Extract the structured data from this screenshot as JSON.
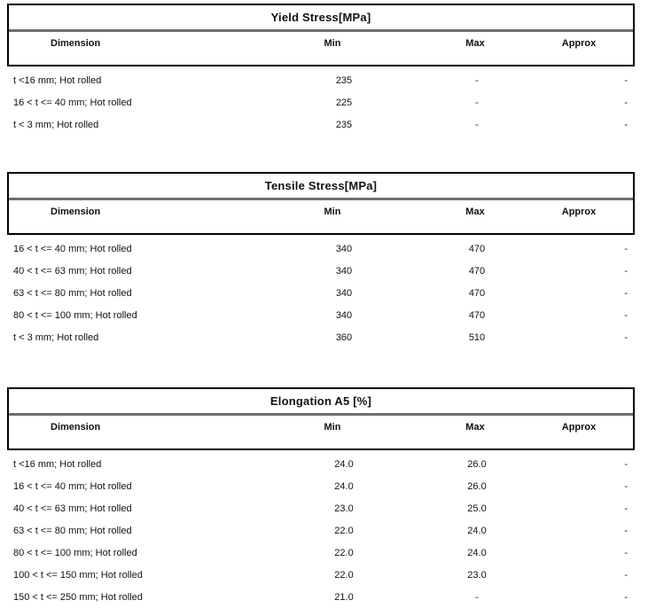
{
  "document": {
    "background_color": "#ffffff",
    "text_color": "#111111",
    "table_border_color": "#000000",
    "title_separator_color": "#6e6e6e"
  },
  "columns": [
    "Dimension",
    "Min",
    "Max",
    "Approx"
  ],
  "tables": [
    {
      "title": "Yield Stress[MPa]",
      "rows": [
        [
          "t <16 mm; Hot rolled",
          "235",
          "-",
          "-"
        ],
        [
          "16 < t <= 40 mm; Hot rolled",
          "225",
          "-",
          "-"
        ],
        [
          "t < 3 mm; Hot rolled",
          "235",
          "-",
          "-"
        ]
      ]
    },
    {
      "title": "Tensile Stress[MPa]",
      "rows": [
        [
          "16 < t <= 40 mm; Hot rolled",
          "340",
          "470",
          "-"
        ],
        [
          "40 < t <= 63 mm; Hot rolled",
          "340",
          "470",
          "-"
        ],
        [
          "63 < t <= 80 mm; Hot rolled",
          "340",
          "470",
          "-"
        ],
        [
          "80 < t <= 100 mm; Hot rolled",
          "340",
          "470",
          "-"
        ],
        [
          "t < 3 mm; Hot rolled",
          "360",
          "510",
          "-"
        ]
      ]
    },
    {
      "title": "Elongation A5 [%]",
      "rows": [
        [
          "t <16 mm; Hot rolled",
          "24.0",
          "26.0",
          "-"
        ],
        [
          "16 < t <= 40 mm; Hot rolled",
          "24.0",
          "26.0",
          "-"
        ],
        [
          "40 < t <= 63 mm; Hot rolled",
          "23.0",
          "25.0",
          "-"
        ],
        [
          "63 < t <= 80 mm; Hot rolled",
          "22.0",
          "24.0",
          "-"
        ],
        [
          "80 < t <= 100 mm; Hot rolled",
          "22.0",
          "24.0",
          "-"
        ],
        [
          "100 < t <= 150 mm; Hot rolled",
          "22.0",
          "23.0",
          "-"
        ],
        [
          "150 < t <= 250 mm; Hot rolled",
          "21.0",
          "-",
          "-"
        ]
      ]
    }
  ]
}
